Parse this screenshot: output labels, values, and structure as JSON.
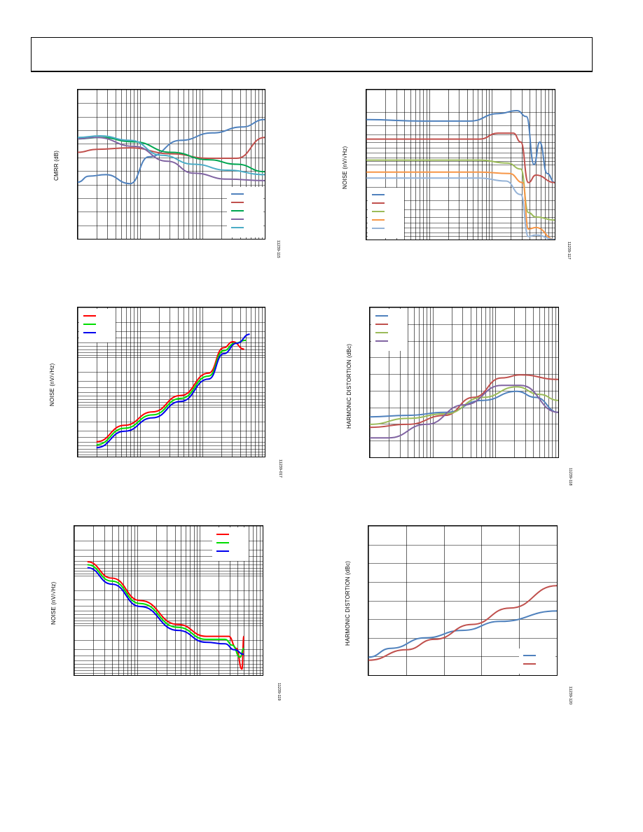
{
  "header": {},
  "panels": [
    {
      "id": "p1",
      "ylabel": "CMRR (dB)",
      "fig_id": "11239-115",
      "chart_data": {
        "type": "line",
        "xscale": "log",
        "grid": true,
        "legend_position": "bottom-right",
        "series": [
          {
            "color": "#4f81bd",
            "points": [
              [
                0,
                0.62
              ],
              [
                0.06,
                0.58
              ],
              [
                0.15,
                0.57
              ],
              [
                0.28,
                0.63
              ],
              [
                0.38,
                0.45
              ],
              [
                0.55,
                0.34
              ],
              [
                0.72,
                0.29
              ],
              [
                0.88,
                0.25
              ],
              [
                1,
                0.2
              ]
            ]
          },
          {
            "color": "#c0504d",
            "points": [
              [
                0,
                0.42
              ],
              [
                0.1,
                0.4
              ],
              [
                0.28,
                0.39
              ],
              [
                0.5,
                0.43
              ],
              [
                0.7,
                0.46
              ],
              [
                0.85,
                0.46
              ],
              [
                1,
                0.32
              ]
            ]
          },
          {
            "color": "#00a651",
            "points": [
              [
                0,
                0.33
              ],
              [
                0.12,
                0.32
              ],
              [
                0.3,
                0.35
              ],
              [
                0.5,
                0.42
              ],
              [
                0.7,
                0.47
              ],
              [
                0.85,
                0.5
              ],
              [
                1,
                0.55
              ]
            ]
          },
          {
            "color": "#8064a2",
            "points": [
              [
                0,
                0.33
              ],
              [
                0.1,
                0.32
              ],
              [
                0.3,
                0.38
              ],
              [
                0.48,
                0.48
              ],
              [
                0.62,
                0.56
              ],
              [
                0.8,
                0.6
              ],
              [
                1,
                0.61
              ]
            ]
          },
          {
            "color": "#4bacc6",
            "points": [
              [
                0,
                0.32
              ],
              [
                0.12,
                0.31
              ],
              [
                0.28,
                0.34
              ],
              [
                0.45,
                0.44
              ],
              [
                0.62,
                0.5
              ],
              [
                0.8,
                0.54
              ],
              [
                1,
                0.57
              ]
            ]
          }
        ]
      }
    },
    {
      "id": "p2",
      "ylabel": "NOISE (nV/√Hz)",
      "fig_id": "11239-117",
      "chart_data": {
        "type": "line",
        "xscale": "log",
        "yscale": "log",
        "grid": true,
        "legend_position": "bottom-left",
        "series": [
          {
            "color": "#4f81bd",
            "points": [
              [
                0,
                0.2
              ],
              [
                0.3,
                0.21
              ],
              [
                0.55,
                0.21
              ],
              [
                0.7,
                0.16
              ],
              [
                0.8,
                0.14
              ],
              [
                0.85,
                0.18
              ],
              [
                0.89,
                0.5
              ],
              [
                0.92,
                0.35
              ],
              [
                0.96,
                0.56
              ],
              [
                1,
                0.62
              ]
            ]
          },
          {
            "color": "#c0504d",
            "points": [
              [
                0,
                0.33
              ],
              [
                0.3,
                0.33
              ],
              [
                0.6,
                0.33
              ],
              [
                0.7,
                0.29
              ],
              [
                0.78,
                0.29
              ],
              [
                0.82,
                0.35
              ],
              [
                0.86,
                0.62
              ],
              [
                0.9,
                0.57
              ],
              [
                1,
                0.62
              ]
            ]
          },
          {
            "color": "#9bbb59",
            "points": [
              [
                0,
                0.47
              ],
              [
                0.3,
                0.47
              ],
              [
                0.6,
                0.47
              ],
              [
                0.75,
                0.49
              ],
              [
                0.82,
                0.53
              ],
              [
                0.86,
                0.82
              ],
              [
                0.9,
                0.85
              ],
              [
                1,
                0.87
              ]
            ]
          },
          {
            "color": "#f79646",
            "points": [
              [
                0,
                0.55
              ],
              [
                0.3,
                0.55
              ],
              [
                0.6,
                0.55
              ],
              [
                0.76,
                0.56
              ],
              [
                0.83,
                0.62
              ],
              [
                0.86,
                0.93
              ],
              [
                0.9,
                0.92
              ],
              [
                1,
                1.0
              ]
            ]
          },
          {
            "color": "#95b3d7",
            "points": [
              [
                0,
                0.59
              ],
              [
                0.3,
                0.59
              ],
              [
                0.6,
                0.59
              ],
              [
                0.74,
                0.61
              ],
              [
                0.82,
                0.7
              ],
              [
                0.86,
                0.98
              ],
              [
                0.9,
                0.97
              ],
              [
                1,
                1.0
              ]
            ]
          }
        ]
      }
    },
    {
      "id": "p3",
      "ylabel": "NOISE (nV/√Hz)",
      "fig_id": "11239-017",
      "chart_data": {
        "type": "line",
        "xscale": "log",
        "yscale": "log",
        "grid": true,
        "legend_position": "top-left",
        "series": [
          {
            "color": "#ff0000",
            "points": [
              [
                0.1,
                0.9
              ],
              [
                0.25,
                0.79
              ],
              [
                0.4,
                0.7
              ],
              [
                0.55,
                0.59
              ],
              [
                0.7,
                0.44
              ],
              [
                0.78,
                0.27
              ],
              [
                0.83,
                0.23
              ],
              [
                0.89,
                0.28
              ]
            ]
          },
          {
            "color": "#00dd00",
            "points": [
              [
                0.1,
                0.92
              ],
              [
                0.25,
                0.81
              ],
              [
                0.4,
                0.72
              ],
              [
                0.55,
                0.61
              ],
              [
                0.7,
                0.46
              ],
              [
                0.78,
                0.29
              ],
              [
                0.84,
                0.24
              ],
              [
                0.9,
                0.22
              ]
            ]
          },
          {
            "color": "#0000ee",
            "points": [
              [
                0.1,
                0.94
              ],
              [
                0.25,
                0.83
              ],
              [
                0.4,
                0.74
              ],
              [
                0.55,
                0.63
              ],
              [
                0.7,
                0.48
              ],
              [
                0.78,
                0.31
              ],
              [
                0.85,
                0.24
              ],
              [
                0.92,
                0.18
              ]
            ]
          }
        ]
      }
    },
    {
      "id": "p4",
      "ylabel": "HARMONIC DISTORTION (dBc)",
      "fig_id": "11239-118",
      "chart_data": {
        "type": "line",
        "xscale": "log",
        "grid": true,
        "legend_position": "top-left",
        "series": [
          {
            "color": "#4f81bd",
            "points": [
              [
                0,
                0.73
              ],
              [
                0.2,
                0.72
              ],
              [
                0.4,
                0.7
              ],
              [
                0.6,
                0.62
              ],
              [
                0.78,
                0.56
              ],
              [
                0.88,
                0.6
              ],
              [
                1,
                0.7
              ]
            ]
          },
          {
            "color": "#c0504d",
            "points": [
              [
                0,
                0.8
              ],
              [
                0.2,
                0.78
              ],
              [
                0.4,
                0.72
              ],
              [
                0.55,
                0.6
              ],
              [
                0.7,
                0.47
              ],
              [
                0.8,
                0.45
              ],
              [
                1,
                0.48
              ]
            ]
          },
          {
            "color": "#9bbb59",
            "points": [
              [
                0,
                0.78
              ],
              [
                0.2,
                0.74
              ],
              [
                0.4,
                0.71
              ],
              [
                0.6,
                0.6
              ],
              [
                0.78,
                0.53
              ],
              [
                0.9,
                0.58
              ],
              [
                1,
                0.62
              ]
            ]
          },
          {
            "color": "#8064a2",
            "points": [
              [
                0,
                0.87
              ],
              [
                0.1,
                0.87
              ],
              [
                0.3,
                0.78
              ],
              [
                0.5,
                0.65
              ],
              [
                0.7,
                0.52
              ],
              [
                0.8,
                0.52
              ],
              [
                1,
                0.7
              ]
            ]
          }
        ]
      }
    },
    {
      "id": "p5",
      "ylabel": "NOISE (nV/√Hz)",
      "fig_id": "11239-119",
      "chart_data": {
        "type": "line",
        "xscale": "log",
        "yscale": "log",
        "grid": true,
        "legend_position": "top-right",
        "series": [
          {
            "color": "#ff0000",
            "points": [
              [
                0.07,
                0.24
              ],
              [
                0.2,
                0.35
              ],
              [
                0.35,
                0.5
              ],
              [
                0.55,
                0.66
              ],
              [
                0.7,
                0.74
              ],
              [
                0.82,
                0.74
              ],
              [
                0.86,
                0.82
              ],
              [
                0.89,
                0.96
              ],
              [
                0.9,
                0.74
              ]
            ]
          },
          {
            "color": "#00dd00",
            "points": [
              [
                0.07,
                0.26
              ],
              [
                0.2,
                0.37
              ],
              [
                0.35,
                0.52
              ],
              [
                0.55,
                0.68
              ],
              [
                0.7,
                0.76
              ],
              [
                0.8,
                0.76
              ],
              [
                0.84,
                0.8
              ],
              [
                0.88,
                0.88
              ],
              [
                0.9,
                0.82
              ]
            ]
          },
          {
            "color": "#0000ee",
            "points": [
              [
                0.07,
                0.28
              ],
              [
                0.2,
                0.39
              ],
              [
                0.35,
                0.54
              ],
              [
                0.55,
                0.7
              ],
              [
                0.7,
                0.78
              ],
              [
                0.8,
                0.79
              ],
              [
                0.85,
                0.83
              ],
              [
                0.9,
                0.86
              ]
            ]
          }
        ]
      }
    },
    {
      "id": "p6",
      "ylabel": "HARMONIC DISTORTION (dBc)",
      "fig_id": "11239-120",
      "chart_data": {
        "type": "line",
        "grid": true,
        "legend_position": "bottom-right",
        "series": [
          {
            "color": "#4f81bd",
            "points": [
              [
                0,
                0.88
              ],
              [
                0.12,
                0.82
              ],
              [
                0.3,
                0.75
              ],
              [
                0.5,
                0.7
              ],
              [
                0.7,
                0.64
              ],
              [
                1,
                0.57
              ]
            ]
          },
          {
            "color": "#c0504d",
            "points": [
              [
                0,
                0.9
              ],
              [
                0.2,
                0.83
              ],
              [
                0.35,
                0.76
              ],
              [
                0.55,
                0.66
              ],
              [
                0.75,
                0.55
              ],
              [
                1,
                0.4
              ]
            ]
          }
        ]
      }
    }
  ]
}
